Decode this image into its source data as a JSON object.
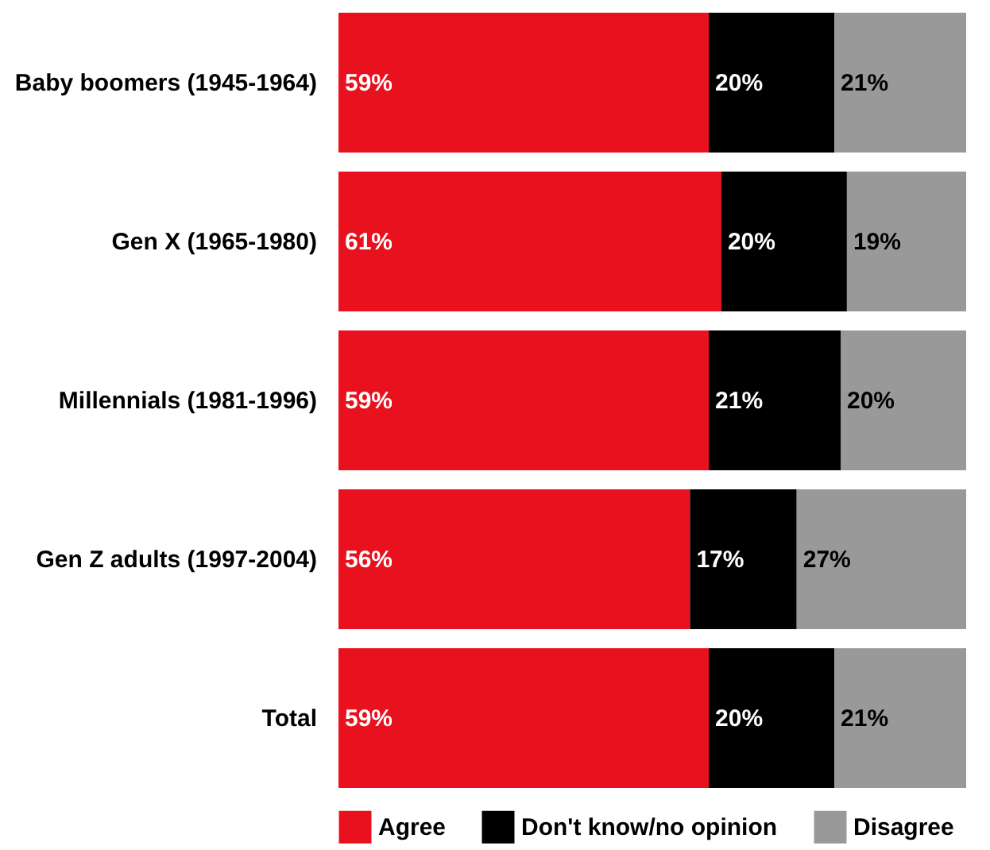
{
  "chart_data": {
    "type": "bar",
    "orientation": "horizontal",
    "stacked": true,
    "legend": "bottom left",
    "categories": [
      "Baby boomers (1945-1964)",
      "Gen X (1965-1980)",
      "Millennials (1981-1996)",
      "Gen Z adults (1997-2004)",
      "Total"
    ],
    "series": [
      {
        "name": "Agree",
        "color": "#e8111d",
        "values": [
          59,
          61,
          59,
          56,
          59
        ],
        "value_labels": [
          "59%",
          "61%",
          "59%",
          "56%",
          "59%"
        ]
      },
      {
        "name": "Don't know/no opinion",
        "color": "#000000",
        "values": [
          20,
          20,
          21,
          17,
          20
        ],
        "value_labels": [
          "20%",
          "20%",
          "21%",
          "17%",
          "20%"
        ]
      },
      {
        "name": "Disagree",
        "color": "#999999",
        "values": [
          21,
          19,
          20,
          27,
          21
        ],
        "value_labels": [
          "21%",
          "19%",
          "20%",
          "27%",
          "21%"
        ]
      }
    ]
  }
}
